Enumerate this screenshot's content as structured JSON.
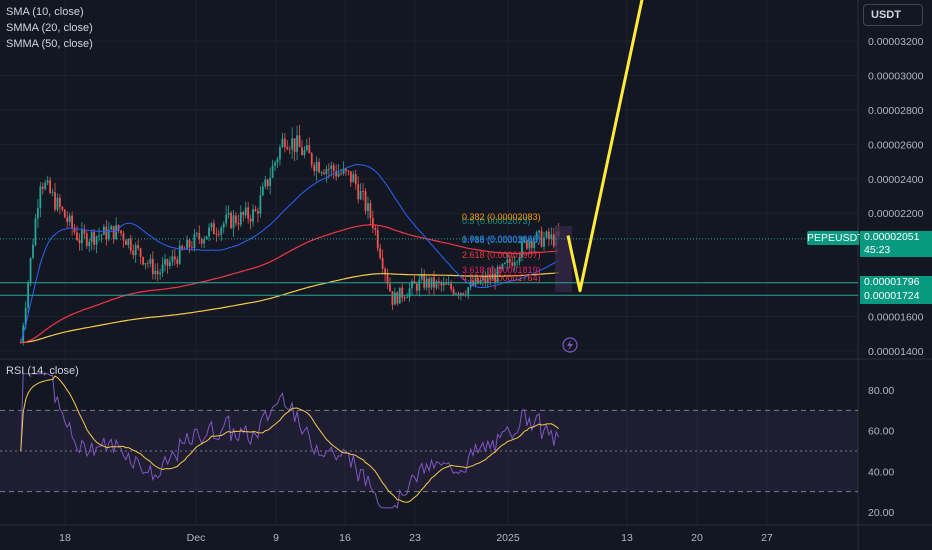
{
  "legend": {
    "sma": "SMA (10, close)",
    "smma20": "SMMA (20, close)",
    "smma50": "SMMA (50, close)"
  },
  "currency_button": "USDT",
  "price_axis": {
    "ticks": [
      "0.00003200",
      "0.00003000",
      "0.00002800",
      "0.00002600",
      "0.00002400",
      "0.00002200",
      "0.00001600",
      "0.00001400"
    ],
    "tick_values": [
      3.2e-05,
      3e-05,
      2.8e-05,
      2.6e-05,
      2.4e-05,
      2.2e-05,
      1.6e-05,
      1.4e-05
    ]
  },
  "price_tags": {
    "symbol": "PEPEUSDT",
    "last_price": "0.00002051",
    "countdown": "45:23",
    "level1": "0.00001796",
    "level2": "0.00001724"
  },
  "rsi": {
    "label": "RSI (14, close)",
    "ticks": [
      "80.00",
      "60.00",
      "40.00",
      "20.00"
    ],
    "tick_values": [
      80,
      60,
      40,
      20
    ]
  },
  "time_axis": {
    "labels": [
      "18",
      "Dec",
      "9",
      "16",
      "23",
      "2025",
      "13",
      "20",
      "27"
    ]
  },
  "fib_labels": [
    "0.786 (0.00002040)",
    "1.618 (0.00001993)",
    "2.618 (0.00001907)",
    "3.618 (0.00001819)",
    "4.236 (0.00001764)",
    "0.5 (0.00002073)",
    "0.382 (0.00002083)"
  ],
  "colors": {
    "background": "#131722",
    "up": "#26a69a",
    "down": "#ef5350",
    "sma": "#2962ff",
    "smma20": "#f23645",
    "smma50": "#f7c948",
    "projection": "#ffeb3b",
    "rsi": "#7e57c2",
    "rsi_ma": "#f7c948",
    "level_line": "#26a69a",
    "symbol_tag": "#089981"
  },
  "chart_data": {
    "type": "candlestick",
    "symbol": "PEPEUSDT",
    "date_axis": [
      "18",
      "Dec",
      "9",
      "16",
      "23",
      "2025",
      "13",
      "20",
      "27"
    ],
    "close_approx": [
      {
        "date": "Nov 12",
        "price": 1.45e-05
      },
      {
        "date": "Nov 14",
        "price": 2.4e-05
      },
      {
        "date": "Nov 18",
        "price": 2.05e-05
      },
      {
        "date": "Nov 22",
        "price": 2.1e-05
      },
      {
        "date": "Nov 26",
        "price": 1.85e-05
      },
      {
        "date": "Nov 30",
        "price": 2.05e-05
      },
      {
        "date": "Dec 3",
        "price": 2.15e-05
      },
      {
        "date": "Dec 6",
        "price": 2.2e-05
      },
      {
        "date": "Dec 9",
        "price": 2.65e-05
      },
      {
        "date": "Dec 12",
        "price": 2.5e-05
      },
      {
        "date": "Dec 16",
        "price": 2.4e-05
      },
      {
        "date": "Dec 18",
        "price": 2.15e-05
      },
      {
        "date": "Dec 20",
        "price": 1.7e-05
      },
      {
        "date": "Dec 23",
        "price": 1.8e-05
      },
      {
        "date": "Dec 27",
        "price": 1.75e-05
      },
      {
        "date": "Dec 31",
        "price": 1.85e-05
      },
      {
        "date": "Jan 3",
        "price": 2.05e-05
      },
      {
        "date": "Jan 6",
        "price": 2.05e-05
      }
    ],
    "projection_path": [
      {
        "date": "Jan 6",
        "price": 2.07e-05
      },
      {
        "date": "Jan 7",
        "price": 1.75e-05
      },
      {
        "date": "Jan 16",
        "price": 3.4e-05
      }
    ],
    "horizontal_levels": [
      1.796e-05,
      1.724e-05
    ],
    "rsi_levels": [
      70,
      50,
      30
    ],
    "ylim": [
      1.35e-05,
      3.3e-05
    ]
  }
}
